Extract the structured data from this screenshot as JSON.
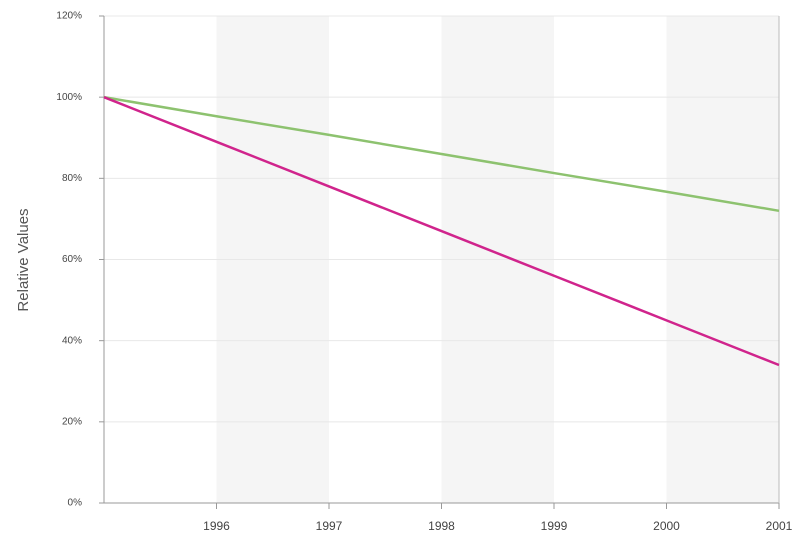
{
  "chart_data": {
    "type": "line",
    "y_label": "Relative Values",
    "x": [
      1995,
      1996,
      1997,
      1998,
      1999,
      2000,
      2001
    ],
    "series": [
      {
        "color": "#8dc26f",
        "values": [
          100,
          95.3,
          90.7,
          86,
          81.3,
          76.7,
          72
        ]
      },
      {
        "color": "#d0248c",
        "values": [
          100,
          89,
          78,
          67,
          56,
          45,
          34
        ]
      }
    ],
    "xlim": [
      1995,
      2001
    ],
    "xticks": [
      1996,
      1997,
      1998,
      1999,
      2000,
      2001
    ],
    "ylim": [
      0,
      120
    ],
    "yticks": [
      {
        "value": 0,
        "label": "0%"
      },
      {
        "value": 20,
        "label": "20%"
      },
      {
        "value": 40,
        "label": "40%"
      },
      {
        "value": 60,
        "label": "60%"
      },
      {
        "value": 80,
        "label": "80%"
      },
      {
        "value": 100,
        "label": "100%"
      },
      {
        "value": 120,
        "label": "120%"
      }
    ],
    "grid": true
  }
}
